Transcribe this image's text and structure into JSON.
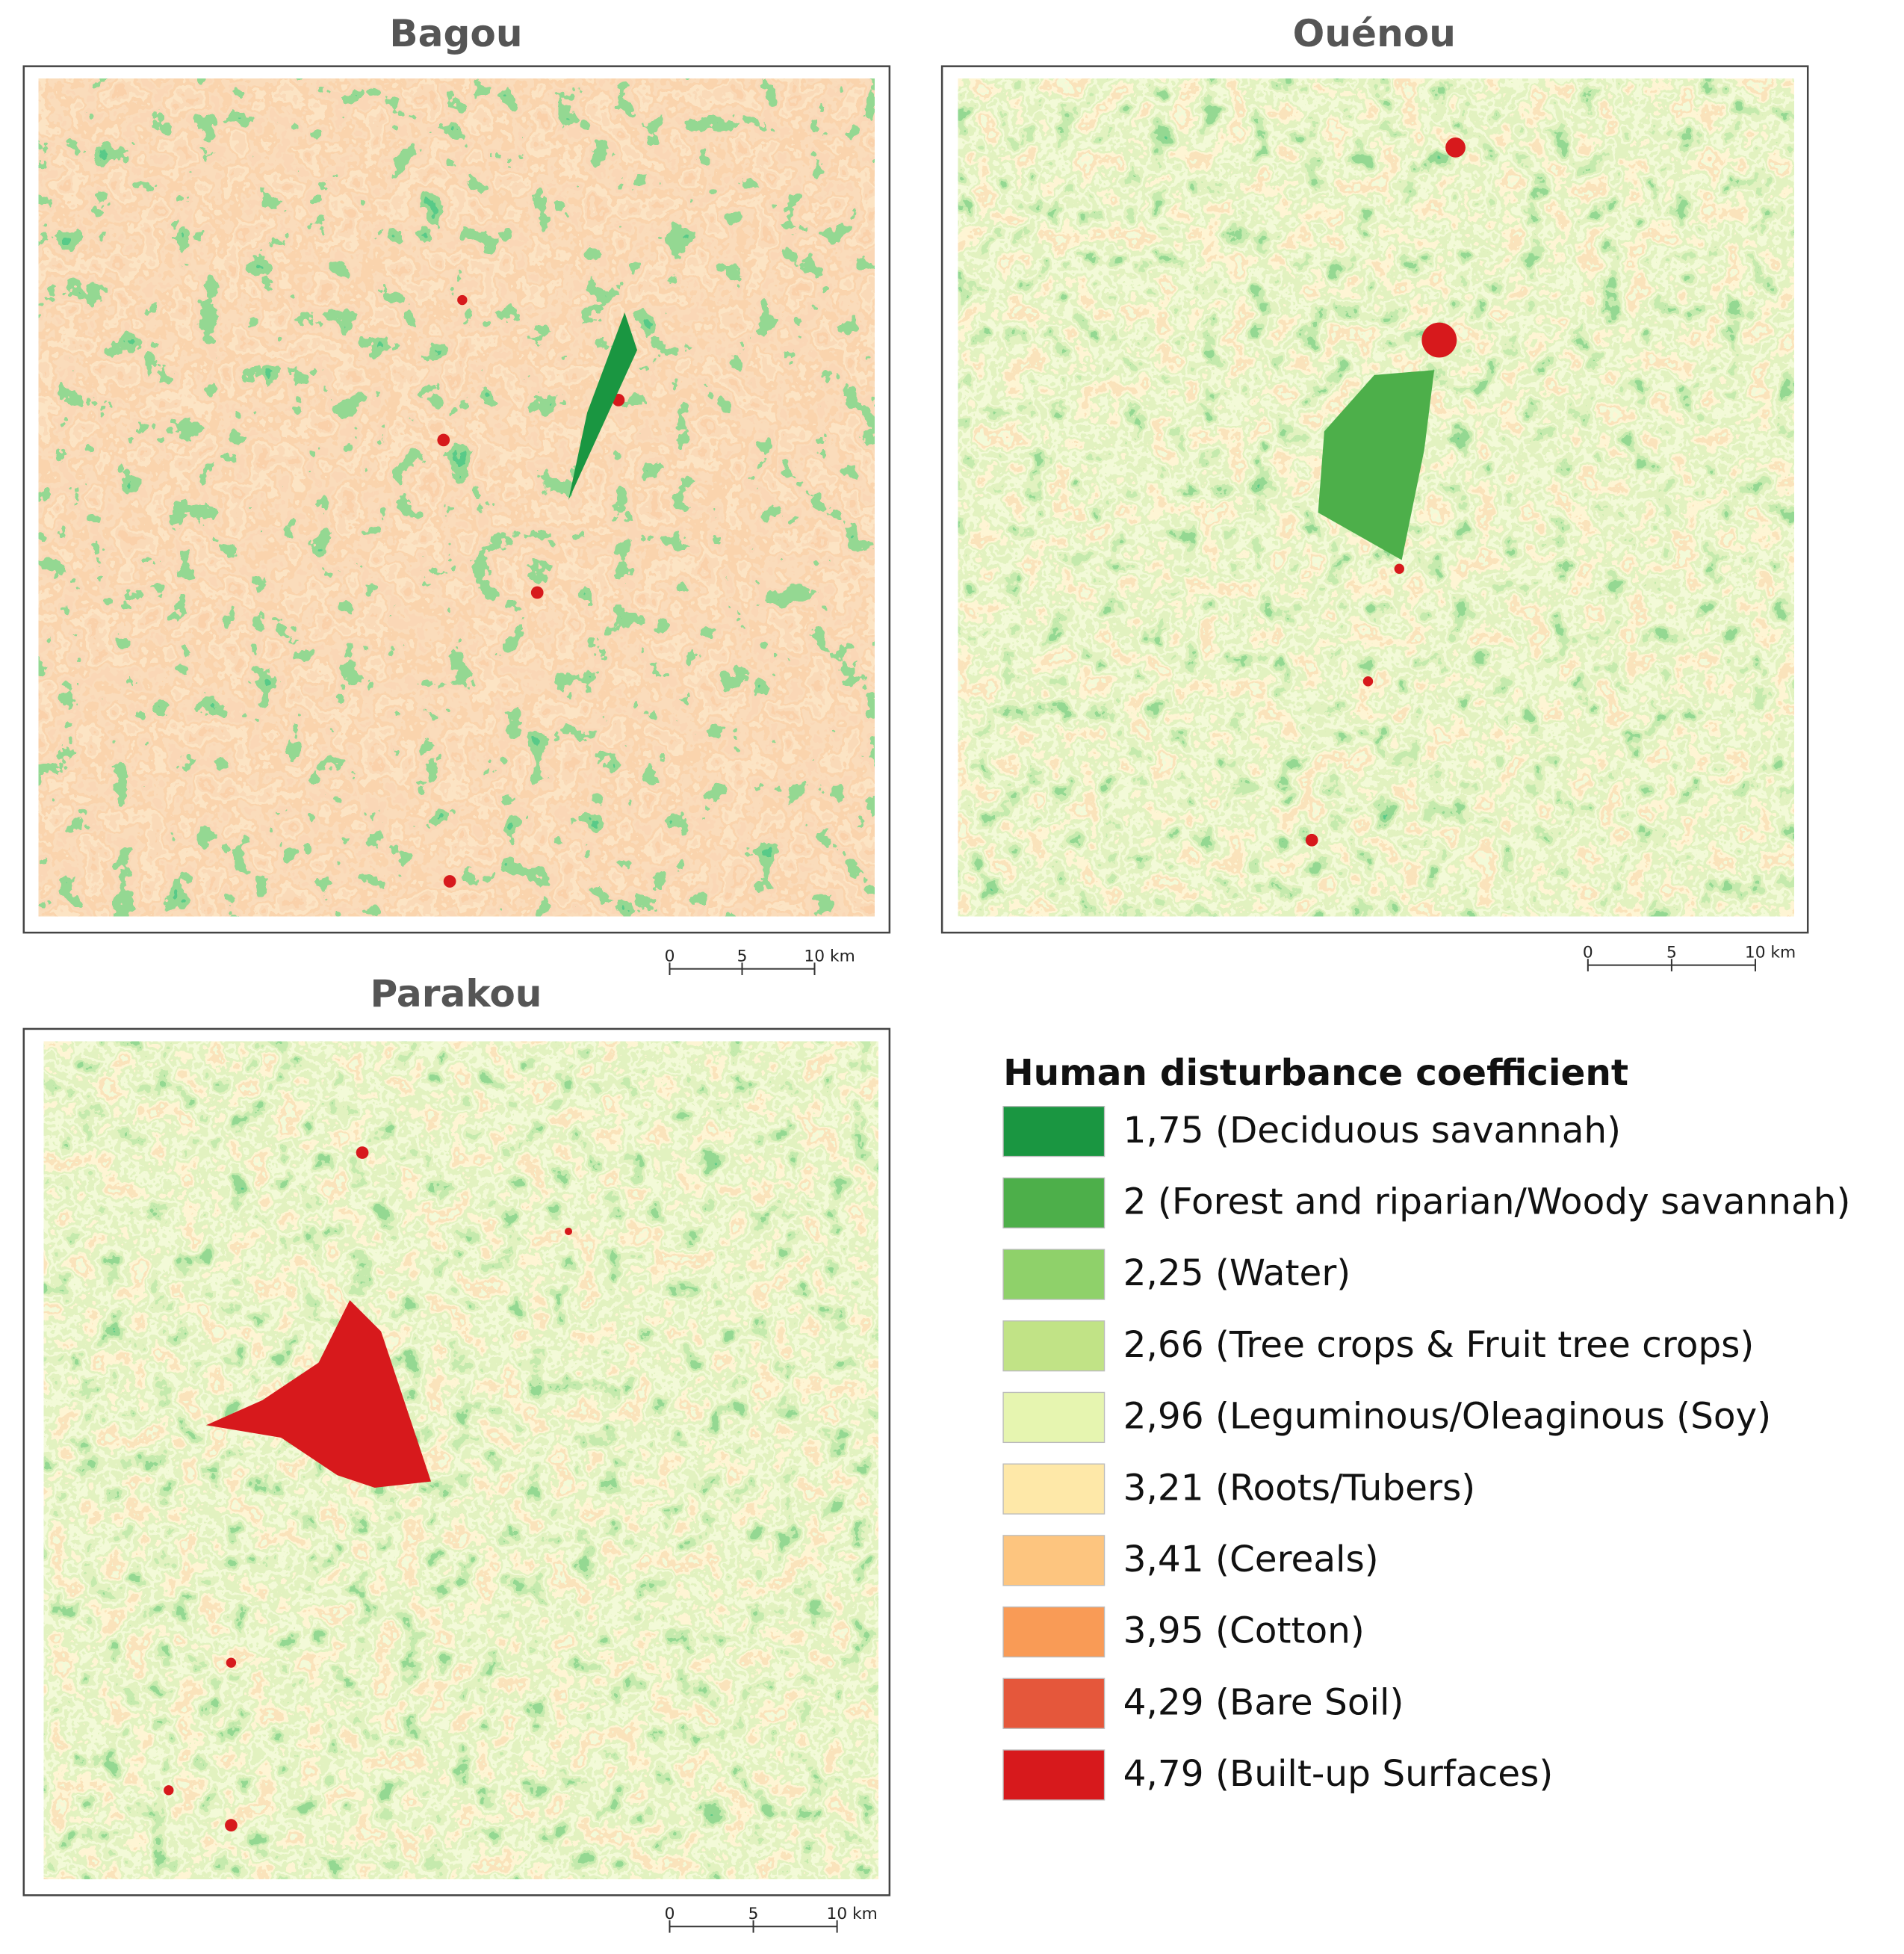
{
  "maps": [
    {
      "title": "Bagou",
      "scale_bar": [
        "0",
        "5",
        "10 km"
      ]
    },
    {
      "title": "Ouénou",
      "scale_bar": [
        "0",
        "5",
        "10 km"
      ]
    },
    {
      "title": "Parakou",
      "scale_bar": [
        "0",
        "5",
        "10 km"
      ]
    }
  ],
  "legend": {
    "title": "Human disturbance coefficient",
    "items": [
      {
        "label": "1,75 (Deciduous savannah)",
        "color": "#1a9641"
      },
      {
        "label": "2 (Forest and riparian/Woody savannah)",
        "color": "#4daf4a"
      },
      {
        "label": "2,25 (Water)",
        "color": "#8fd16a"
      },
      {
        "label": "2,66 (Tree crops & Fruit tree crops)",
        "color": "#c1e386"
      },
      {
        "label": "2,96 (Leguminous/Oleaginous (Soy)",
        "color": "#e6f5b0"
      },
      {
        "label": "3,21 (Roots/Tubers)",
        "color": "#fee8a8"
      },
      {
        "label": "3,41 (Cereals)",
        "color": "#fdc57f"
      },
      {
        "label": "3,95 (Cotton)",
        "color": "#f99b56"
      },
      {
        "label": "4,29 (Bare Soil)",
        "color": "#e5573b"
      },
      {
        "label": "4,79 (Built-up Surfaces)",
        "color": "#d7191c"
      }
    ]
  }
}
